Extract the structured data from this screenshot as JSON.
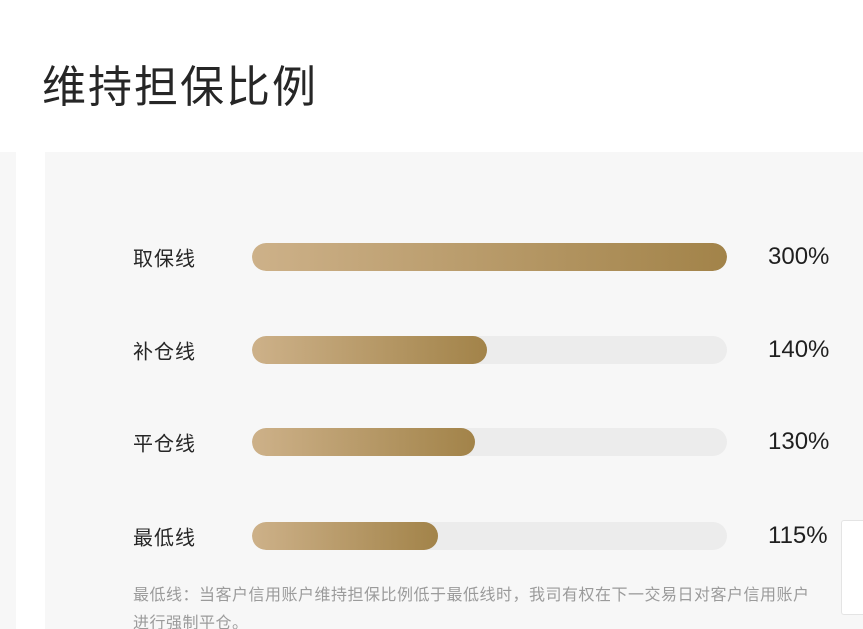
{
  "theme": {
    "gold-start": "#cdb189",
    "gold-end": "#a28349",
    "track": "#ececec",
    "card-bg": "#f7f7f7",
    "text-dark": "#262626",
    "note-gray": "#9b9b9b"
  },
  "page": {
    "title": "维持担保比例"
  },
  "chart_data": {
    "type": "bar",
    "orientation": "horizontal",
    "title": "维持担保比例",
    "categories": [
      "取保线",
      "补仓线",
      "平仓线",
      "最低线"
    ],
    "values": [
      300,
      140,
      130,
      115
    ],
    "unit": "%",
    "value_labels": [
      "300%",
      "140%",
      "130%",
      "115%"
    ],
    "bar_fill_percent": [
      100,
      49.5,
      47,
      39.2
    ],
    "xlim": [
      0,
      300
    ],
    "grid": false,
    "legend": false
  },
  "footnote": {
    "text": "最低线：当客户信用账户维持担保比例低于最低线时，我司有权在下一交易日对客户信用账户进行强制平仓。"
  }
}
